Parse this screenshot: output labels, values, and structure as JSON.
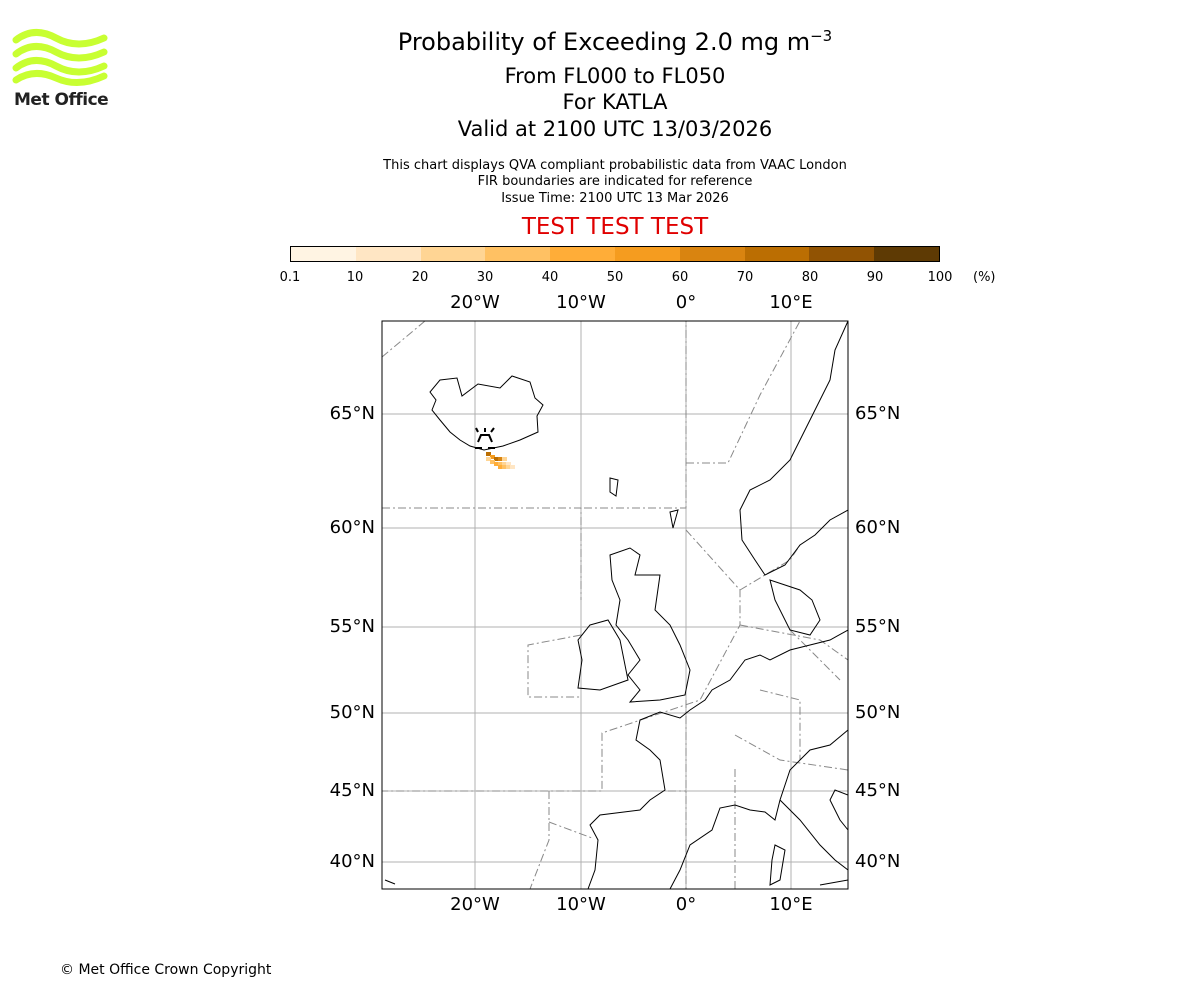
{
  "logo": {
    "text": "Met Office",
    "color": "#c8ff32"
  },
  "title": {
    "main": "Probability of Exceeding 2.0 mg m",
    "exponent": "−3",
    "levels": "From FL000 to FL050",
    "volcano": "For KATLA",
    "valid": "Valid at 2100 UTC 13/03/2026"
  },
  "info": [
    "This chart displays QVA compliant probabilistic data from VAAC London",
    "FIR boundaries are indicated for reference",
    "Issue Time: 2100 UTC 13 Mar 2026"
  ],
  "banner": "TEST TEST TEST",
  "colorbar": {
    "ticks": [
      "0.1",
      "10",
      "20",
      "30",
      "40",
      "50",
      "60",
      "70",
      "80",
      "90",
      "100"
    ],
    "unit": "(%)",
    "colors": [
      "#fff4e3",
      "#ffe6c4",
      "#ffd594",
      "#ffc163",
      "#ffad38",
      "#f59c1f",
      "#d98410",
      "#bb6e02",
      "#915303",
      "#5e3a04"
    ]
  },
  "axes": {
    "lon": [
      "20°W",
      "10°W",
      "0°",
      "10°E"
    ],
    "lat": [
      "65°N",
      "60°N",
      "55°N",
      "50°N",
      "45°N",
      "40°N"
    ]
  },
  "copyright": "© Met Office Crown Copyright"
}
